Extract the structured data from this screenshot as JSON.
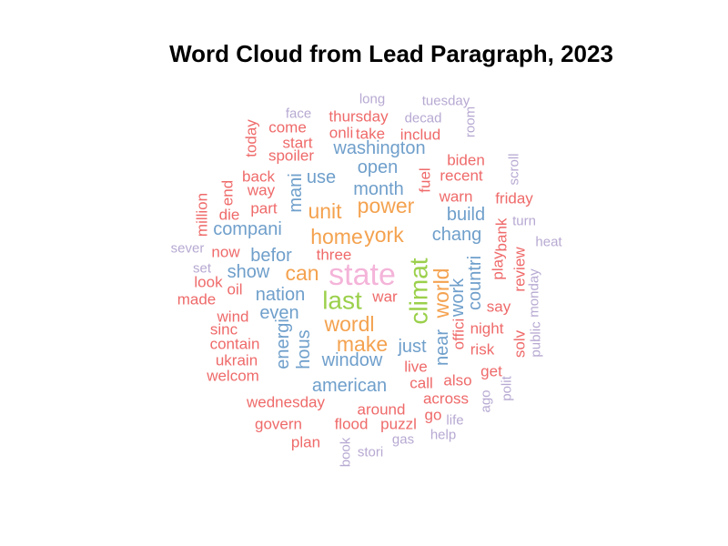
{
  "chart_data": {
    "type": "wordcloud",
    "title": "Word Cloud from Lead Paragraph, 2023",
    "colors": {
      "pink": "#f4b4d9",
      "green": "#9bd04b",
      "orange": "#f4a24f",
      "blue": "#6f9fcb",
      "red": "#ef6a6a",
      "lavender": "#b7a9d2"
    },
    "words": [
      {
        "text": "state",
        "color": "pink",
        "rank": 1
      },
      {
        "text": "climat",
        "color": "green",
        "rank": 2,
        "vertical": true
      },
      {
        "text": "last",
        "color": "green",
        "rank": 2
      },
      {
        "text": "york",
        "color": "orange",
        "rank": 3
      },
      {
        "text": "wordl",
        "color": "orange",
        "rank": 3
      },
      {
        "text": "power",
        "color": "orange",
        "rank": 3
      },
      {
        "text": "home",
        "color": "orange",
        "rank": 3
      },
      {
        "text": "can",
        "color": "orange",
        "rank": 3
      },
      {
        "text": "make",
        "color": "orange",
        "rank": 3
      },
      {
        "text": "unit",
        "color": "orange",
        "rank": 3
      },
      {
        "text": "world",
        "color": "orange",
        "rank": 3,
        "vertical": true
      },
      {
        "text": "nation",
        "color": "blue",
        "rank": 4
      },
      {
        "text": "chang",
        "color": "blue",
        "rank": 4
      },
      {
        "text": "month",
        "color": "blue",
        "rank": 4
      },
      {
        "text": "american",
        "color": "blue",
        "rank": 4
      },
      {
        "text": "window",
        "color": "blue",
        "rank": 4
      },
      {
        "text": "befor",
        "color": "blue",
        "rank": 4
      },
      {
        "text": "even",
        "color": "blue",
        "rank": 4
      },
      {
        "text": "washington",
        "color": "blue",
        "rank": 4
      },
      {
        "text": "open",
        "color": "blue",
        "rank": 4
      },
      {
        "text": "build",
        "color": "blue",
        "rank": 4
      },
      {
        "text": "compani",
        "color": "blue",
        "rank": 4
      },
      {
        "text": "use",
        "color": "blue",
        "rank": 4
      },
      {
        "text": "show",
        "color": "blue",
        "rank": 4
      },
      {
        "text": "just",
        "color": "blue",
        "rank": 4
      },
      {
        "text": "work",
        "color": "blue",
        "rank": 4,
        "vertical": true
      },
      {
        "text": "countri",
        "color": "blue",
        "rank": 4,
        "vertical": true
      },
      {
        "text": "energi",
        "color": "blue",
        "rank": 4,
        "vertical": true
      },
      {
        "text": "hous",
        "color": "blue",
        "rank": 4,
        "vertical": true
      },
      {
        "text": "mani",
        "color": "blue",
        "rank": 4,
        "vertical": true
      },
      {
        "text": "near",
        "color": "blue",
        "rank": 4,
        "vertical": true
      },
      {
        "text": "wednesday",
        "color": "red",
        "rank": 5
      },
      {
        "text": "around",
        "color": "red",
        "rank": 5
      },
      {
        "text": "warn",
        "color": "red",
        "rank": 5
      },
      {
        "text": "recent",
        "color": "red",
        "rank": 5
      },
      {
        "text": "thursday",
        "color": "red",
        "rank": 5
      },
      {
        "text": "take",
        "color": "red",
        "rank": 5
      },
      {
        "text": "spoiler",
        "color": "red",
        "rank": 5
      },
      {
        "text": "back",
        "color": "red",
        "rank": 5
      },
      {
        "text": "way",
        "color": "red",
        "rank": 5
      },
      {
        "text": "part",
        "color": "red",
        "rank": 5
      },
      {
        "text": "call",
        "color": "red",
        "rank": 5
      },
      {
        "text": "live",
        "color": "red",
        "rank": 5
      },
      {
        "text": "across",
        "color": "red",
        "rank": 5
      },
      {
        "text": "war",
        "color": "red",
        "rank": 5
      },
      {
        "text": "say",
        "color": "red",
        "rank": 5
      },
      {
        "text": "night",
        "color": "red",
        "rank": 5
      },
      {
        "text": "risk",
        "color": "red",
        "rank": 5
      },
      {
        "text": "contain",
        "color": "red",
        "rank": 5
      },
      {
        "text": "ukrain",
        "color": "red",
        "rank": 5
      },
      {
        "text": "welcom",
        "color": "red",
        "rank": 5
      },
      {
        "text": "oil",
        "color": "red",
        "rank": 5
      },
      {
        "text": "wind",
        "color": "red",
        "rank": 5
      },
      {
        "text": "sinc",
        "color": "red",
        "rank": 5
      },
      {
        "text": "three",
        "color": "red",
        "rank": 5
      },
      {
        "text": "now",
        "color": "red",
        "rank": 5
      },
      {
        "text": "look",
        "color": "red",
        "rank": 5
      },
      {
        "text": "made",
        "color": "red",
        "rank": 5
      },
      {
        "text": "die",
        "color": "red",
        "rank": 5
      },
      {
        "text": "come",
        "color": "red",
        "rank": 5
      },
      {
        "text": "start",
        "color": "red",
        "rank": 5
      },
      {
        "text": "onli",
        "color": "red",
        "rank": 5
      },
      {
        "text": "includ",
        "color": "red",
        "rank": 5
      },
      {
        "text": "biden",
        "color": "red",
        "rank": 5
      },
      {
        "text": "friday",
        "color": "red",
        "rank": 5
      },
      {
        "text": "govern",
        "color": "red",
        "rank": 5
      },
      {
        "text": "plan",
        "color": "red",
        "rank": 5
      },
      {
        "text": "flood",
        "color": "red",
        "rank": 5
      },
      {
        "text": "puzzl",
        "color": "red",
        "rank": 5
      },
      {
        "text": "go",
        "color": "red",
        "rank": 5
      },
      {
        "text": "also",
        "color": "red",
        "rank": 5
      },
      {
        "text": "get",
        "color": "red",
        "rank": 5
      },
      {
        "text": "offici",
        "color": "red",
        "rank": 5,
        "vertical": true
      },
      {
        "text": "play",
        "color": "red",
        "rank": 5,
        "vertical": true
      },
      {
        "text": "bank",
        "color": "red",
        "rank": 5,
        "vertical": true
      },
      {
        "text": "review",
        "color": "red",
        "rank": 5,
        "vertical": true
      },
      {
        "text": "solv",
        "color": "red",
        "rank": 5,
        "vertical": true
      },
      {
        "text": "fuel",
        "color": "red",
        "rank": 5,
        "vertical": true
      },
      {
        "text": "end",
        "color": "red",
        "rank": 5,
        "vertical": true
      },
      {
        "text": "million",
        "color": "red",
        "rank": 5,
        "vertical": true
      },
      {
        "text": "today",
        "color": "red",
        "rank": 5,
        "vertical": true
      },
      {
        "text": "long",
        "color": "lavender",
        "rank": 6
      },
      {
        "text": "tuesday",
        "color": "lavender",
        "rank": 6
      },
      {
        "text": "face",
        "color": "lavender",
        "rank": 6
      },
      {
        "text": "decad",
        "color": "lavender",
        "rank": 6
      },
      {
        "text": "turn",
        "color": "lavender",
        "rank": 6
      },
      {
        "text": "heat",
        "color": "lavender",
        "rank": 6
      },
      {
        "text": "sever",
        "color": "lavender",
        "rank": 6
      },
      {
        "text": "set",
        "color": "lavender",
        "rank": 6
      },
      {
        "text": "life",
        "color": "lavender",
        "rank": 6
      },
      {
        "text": "help",
        "color": "lavender",
        "rank": 6
      },
      {
        "text": "gas",
        "color": "lavender",
        "rank": 6
      },
      {
        "text": "stori",
        "color": "lavender",
        "rank": 6
      },
      {
        "text": "room",
        "color": "lavender",
        "rank": 6,
        "vertical": true
      },
      {
        "text": "scroll",
        "color": "lavender",
        "rank": 6,
        "vertical": true
      },
      {
        "text": "monday",
        "color": "lavender",
        "rank": 6,
        "vertical": true
      },
      {
        "text": "public",
        "color": "lavender",
        "rank": 6,
        "vertical": true
      },
      {
        "text": "polit",
        "color": "lavender",
        "rank": 6,
        "vertical": true
      },
      {
        "text": "ago",
        "color": "lavender",
        "rank": 6,
        "vertical": true
      },
      {
        "text": "book",
        "color": "lavender",
        "rank": 6,
        "vertical": true
      }
    ]
  }
}
